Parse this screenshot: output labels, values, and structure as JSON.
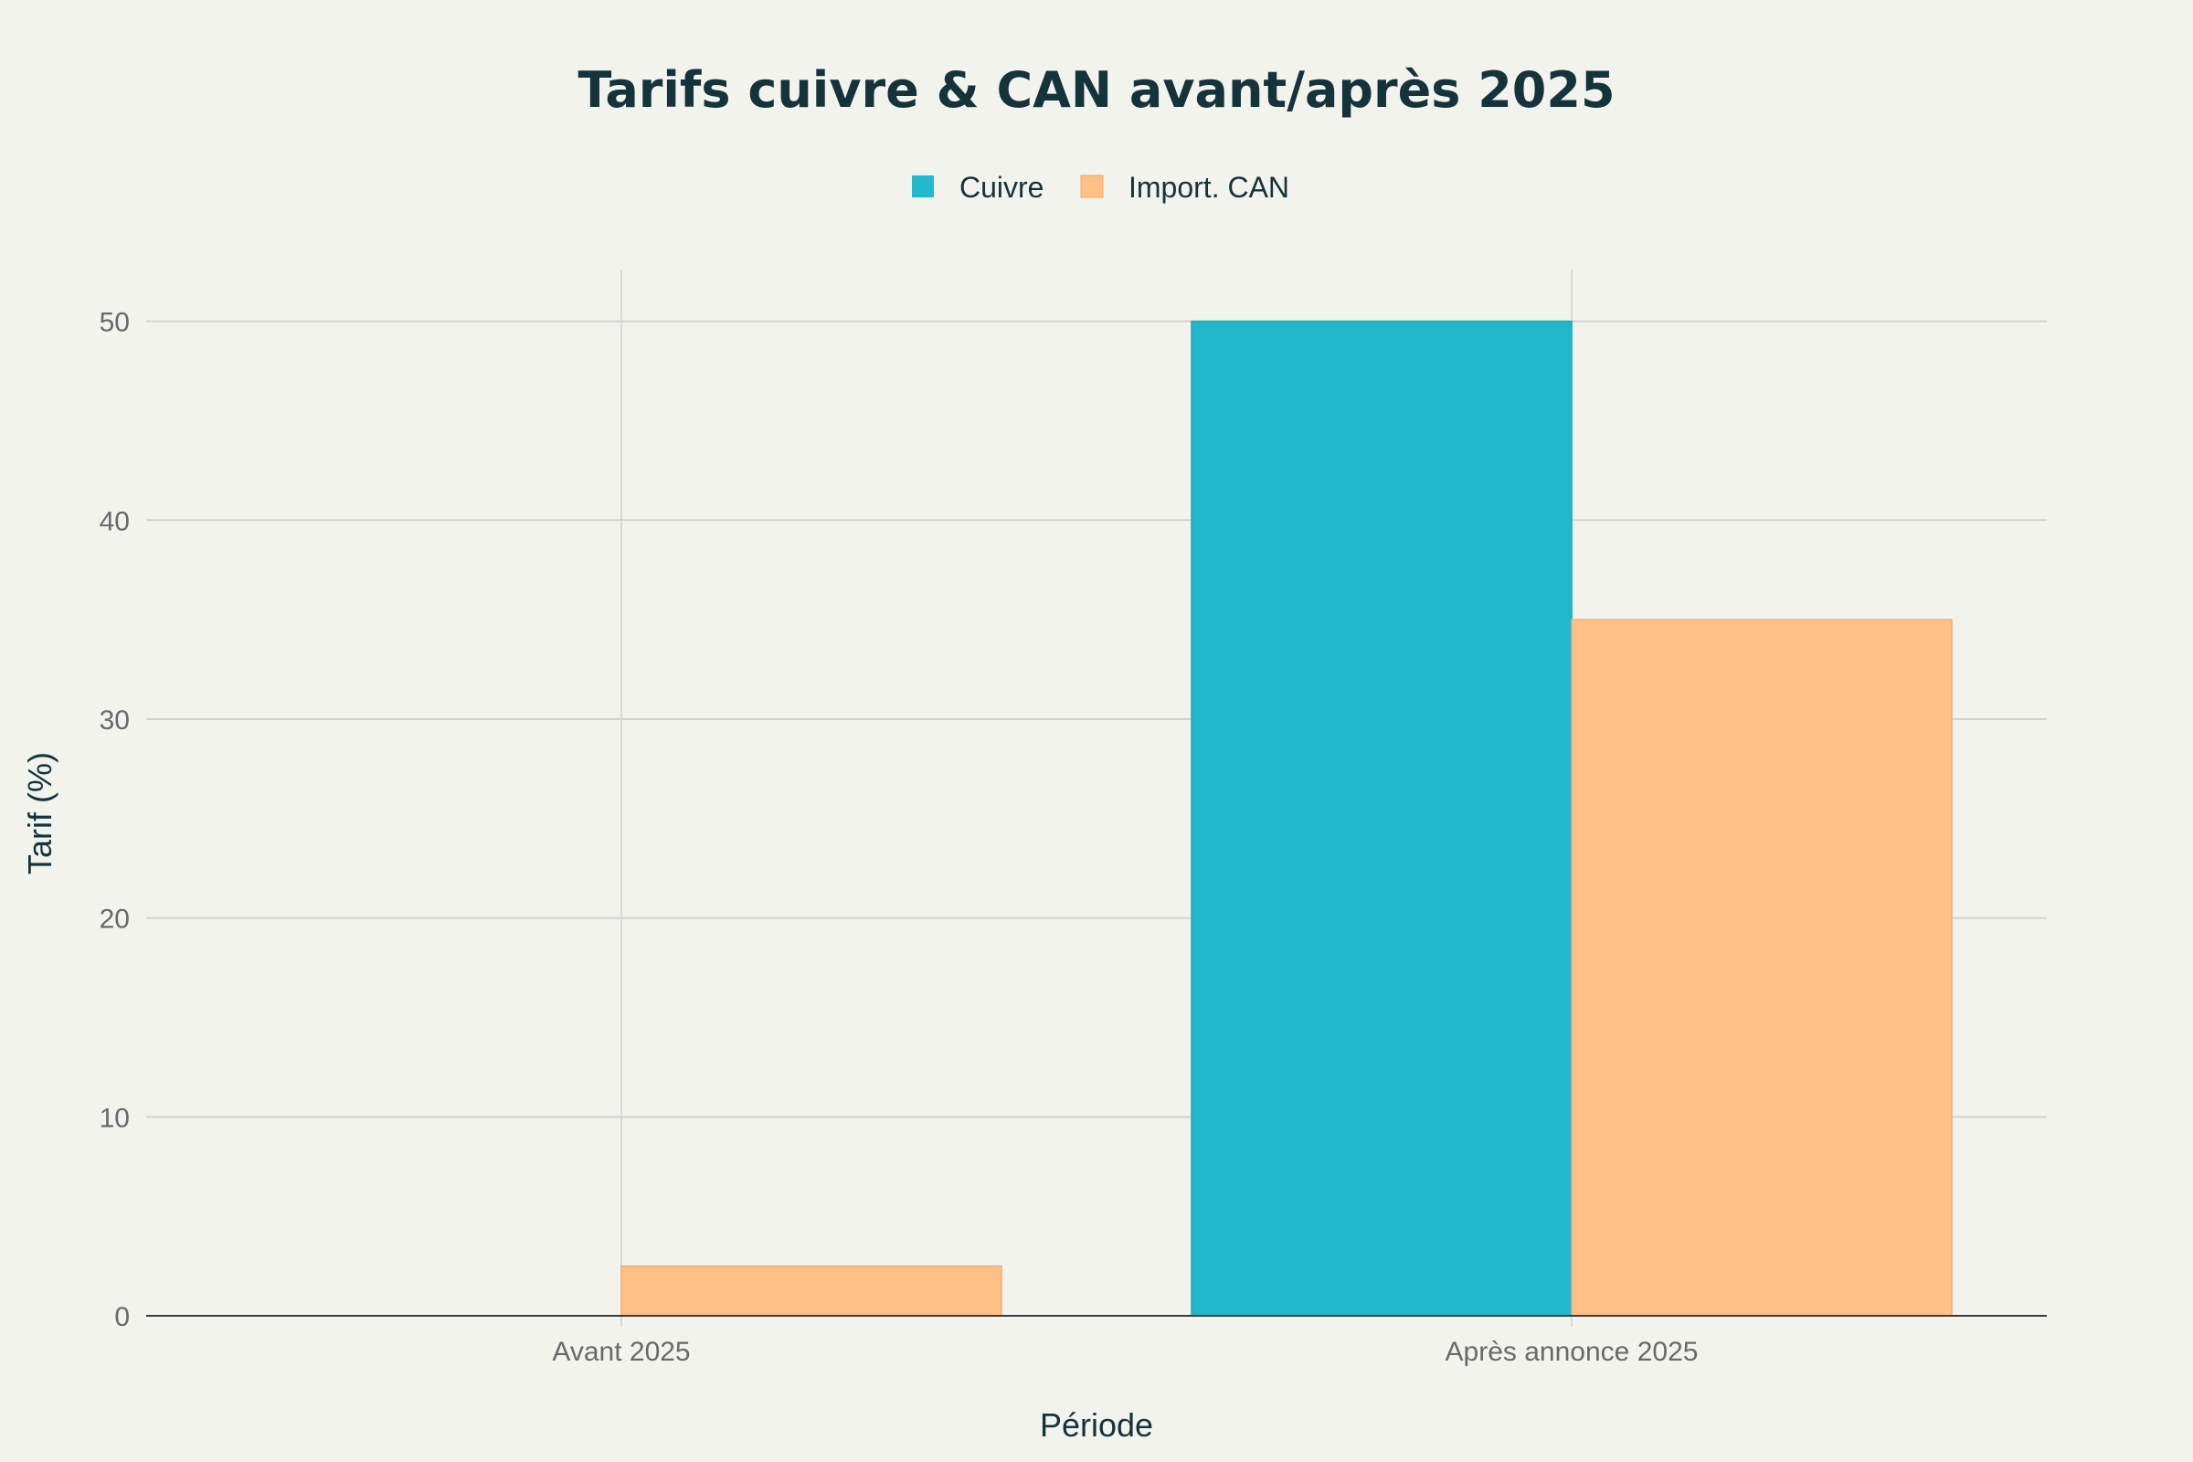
{
  "chart_data": {
    "type": "bar",
    "title": "Tarifs cuivre & CAN avant/après 2025",
    "xlabel": "Période",
    "ylabel": "Tarif (%)",
    "categories": [
      "Avant 2025",
      "Après annonce 2025"
    ],
    "series": [
      {
        "name": "Cuivre",
        "values": [
          0,
          50
        ],
        "color": "#21b8cc"
      },
      {
        "name": "Import. CAN",
        "values": [
          2.5,
          35
        ],
        "color": "#ffc085"
      }
    ],
    "ylim": [
      0,
      52.6
    ],
    "yticks": [
      0,
      10,
      20,
      30,
      40,
      50
    ],
    "grid": true,
    "legend_position": "top-center"
  }
}
